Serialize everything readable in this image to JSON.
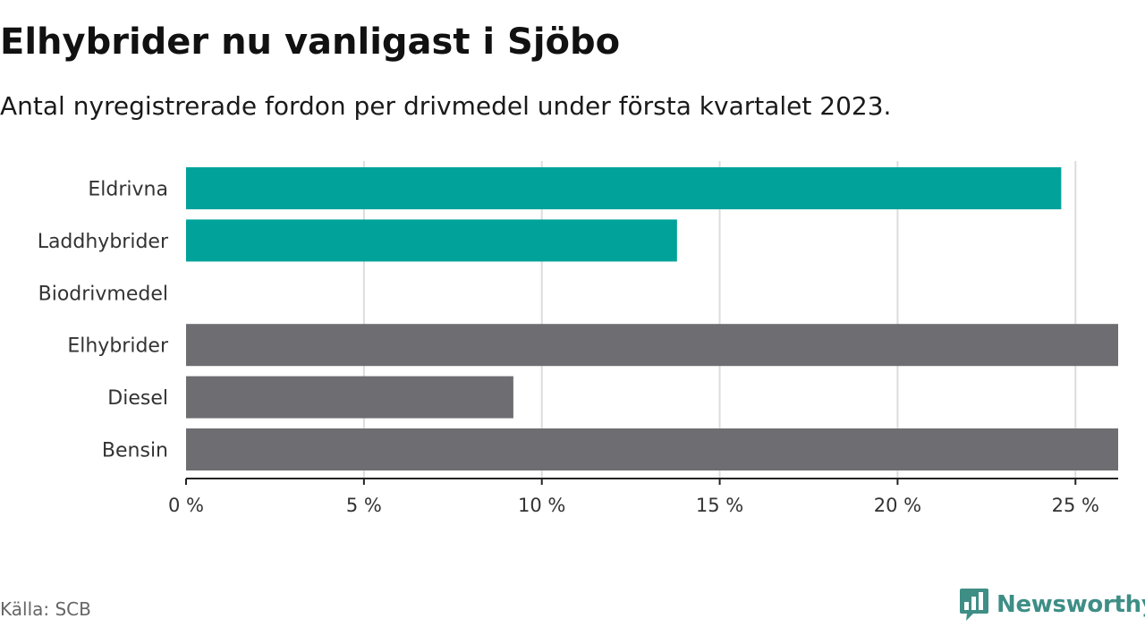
{
  "header": {
    "title": "Elhybrider nu vanligast i Sjöbo",
    "subtitle": "Antal nyregistrerade fordon per drivmedel under första kvartalet 2023."
  },
  "footer": {
    "source": "Källa: SCB",
    "brand": "Newsworthy"
  },
  "colors": {
    "highlight": "#00a29a",
    "default": "#6e6d72",
    "grid": "#dcdcdc",
    "axis": "#222222",
    "brand": "#3e8e86"
  },
  "chart_data": {
    "type": "bar",
    "orientation": "horizontal",
    "title": "Elhybrider nu vanligast i Sjöbo",
    "subtitle": "Antal nyregistrerade fordon per drivmedel under första kvartalet 2023.",
    "categories": [
      "Eldrivna",
      "Laddhybrider",
      "Biodrivmedel",
      "Elhybrider",
      "Diesel",
      "Bensin"
    ],
    "values": [
      24.6,
      13.8,
      0,
      26.2,
      9.2,
      26.2
    ],
    "highlight": [
      true,
      true,
      false,
      false,
      false,
      false
    ],
    "xlim": [
      0,
      26.2
    ],
    "xticks": [
      0,
      5,
      10,
      15,
      20,
      25
    ],
    "xtick_labels": [
      "0 %",
      "5 %",
      "10 %",
      "15 %",
      "20 %",
      "25 %"
    ],
    "xlabel": "",
    "ylabel": "",
    "grid": true,
    "legend": "none"
  }
}
